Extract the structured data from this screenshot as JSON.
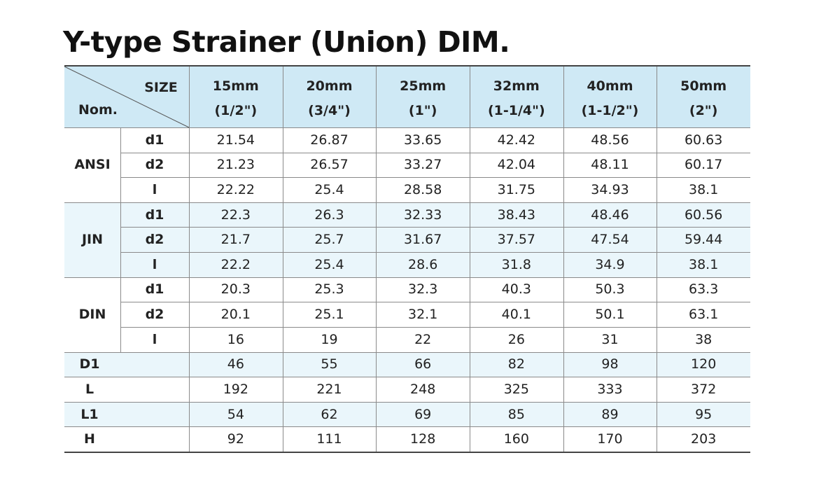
{
  "title": "Y-type Strainer (Union) DIM.",
  "table": {
    "corner": {
      "size": "SIZE",
      "nom": "Nom."
    },
    "columns": [
      {
        "size": "15mm",
        "inch": "(1/2\")"
      },
      {
        "size": "20mm",
        "inch": "(3/4\")"
      },
      {
        "size": "25mm",
        "inch": "(1\")"
      },
      {
        "size": "32mm",
        "inch": "(1-1/4\")"
      },
      {
        "size": "40mm",
        "inch": "(1-1/2\")"
      },
      {
        "size": "50mm",
        "inch": "(2\")"
      }
    ],
    "groups": [
      {
        "name": "ANSI",
        "rows": [
          {
            "label": "d1",
            "values": [
              "21.54",
              "26.87",
              "33.65",
              "42.42",
              "48.56",
              "60.63"
            ]
          },
          {
            "label": "d2",
            "values": [
              "21.23",
              "26.57",
              "33.27",
              "42.04",
              "48.11",
              "60.17"
            ]
          },
          {
            "label": "l",
            "values": [
              "22.22",
              "25.4",
              "28.58",
              "31.75",
              "34.93",
              "38.1"
            ]
          }
        ]
      },
      {
        "name": "JIN",
        "rows": [
          {
            "label": "d1",
            "values": [
              "22.3",
              "26.3",
              "32.33",
              "38.43",
              "48.46",
              "60.56"
            ]
          },
          {
            "label": "d2",
            "values": [
              "21.7",
              "25.7",
              "31.67",
              "37.57",
              "47.54",
              "59.44"
            ]
          },
          {
            "label": "l",
            "values": [
              "22.2",
              "25.4",
              "28.6",
              "31.8",
              "34.9",
              "38.1"
            ]
          }
        ]
      },
      {
        "name": "DIN",
        "rows": [
          {
            "label": "d1",
            "values": [
              "20.3",
              "25.3",
              "32.3",
              "40.3",
              "50.3",
              "63.3"
            ]
          },
          {
            "label": "d2",
            "values": [
              "20.1",
              "25.1",
              "32.1",
              "40.1",
              "50.1",
              "63.1"
            ]
          },
          {
            "label": "l",
            "values": [
              "16",
              "19",
              "22",
              "26",
              "31",
              "38"
            ]
          }
        ]
      }
    ],
    "rows": [
      {
        "label": "D1",
        "values": [
          "46",
          "55",
          "66",
          "82",
          "98",
          "120"
        ]
      },
      {
        "label": "L",
        "values": [
          "192",
          "221",
          "248",
          "325",
          "333",
          "372"
        ]
      },
      {
        "label": "L1",
        "values": [
          "54",
          "62",
          "69",
          "85",
          "89",
          "95"
        ]
      },
      {
        "label": "H",
        "values": [
          "92",
          "111",
          "128",
          "160",
          "170",
          "203"
        ]
      }
    ]
  }
}
